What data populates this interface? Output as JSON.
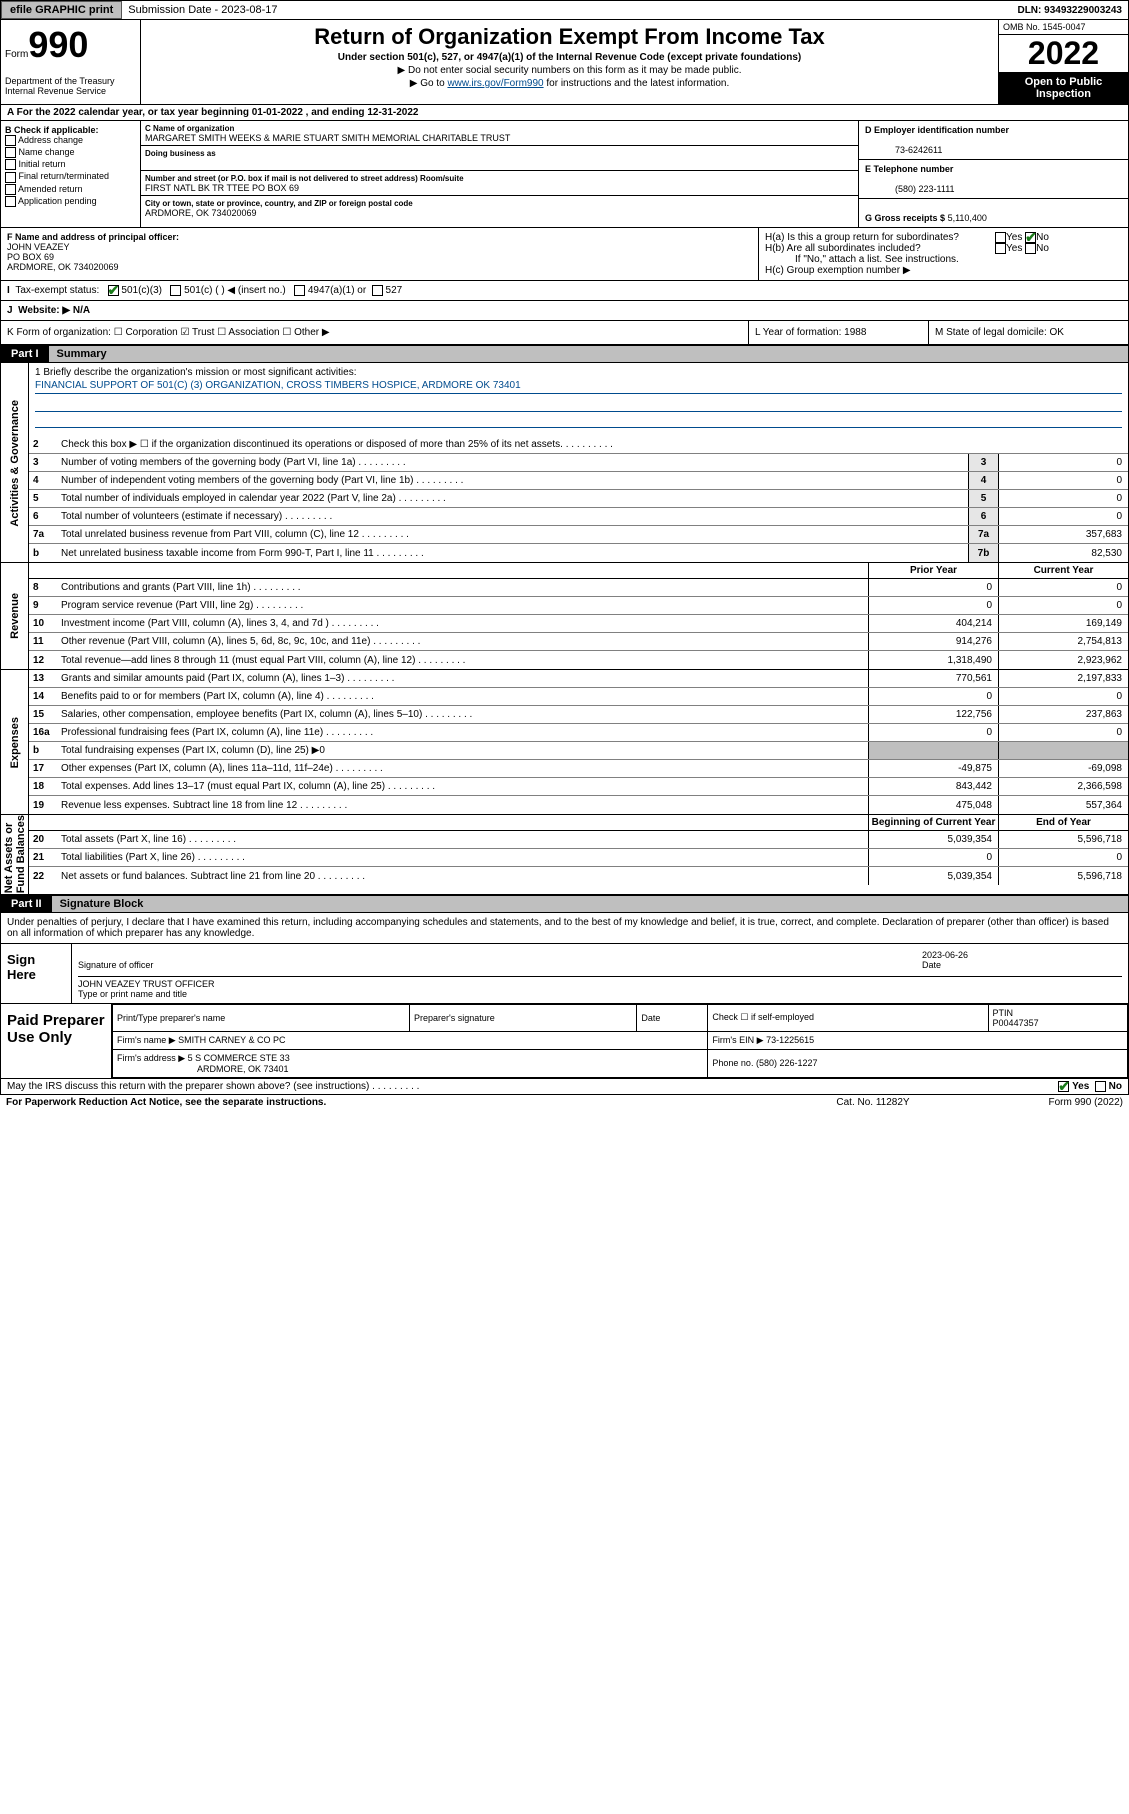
{
  "top": {
    "efile": "efile GRAPHIC print",
    "sub_lbl": "Submission Date - 2023-08-17",
    "dln": "DLN: 93493229003243"
  },
  "hdr": {
    "form": "Form",
    "num": "990",
    "dept": "Department of the Treasury Internal Revenue Service",
    "title": "Return of Organization Exempt From Income Tax",
    "sub": "Under section 501(c), 527, or 4947(a)(1) of the Internal Revenue Code (except private foundations)",
    "note1": "▶ Do not enter social security numbers on this form as it may be made public.",
    "note2": "▶ Go to www.irs.gov/Form990 for instructions and the latest information.",
    "omb": "OMB No. 1545-0047",
    "year": "2022",
    "open": "Open to Public Inspection"
  },
  "rowA": "A For the 2022 calendar year, or tax year beginning 01-01-2022    , and ending 12-31-2022",
  "colB": {
    "title": "B Check if applicable:",
    "items": [
      "Address change",
      "Name change",
      "Initial return",
      "Final return/terminated",
      "Amended return",
      "Application pending"
    ]
  },
  "colC": {
    "name_lbl": "C Name of organization",
    "name": "MARGARET SMITH WEEKS & MARIE STUART SMITH MEMORIAL CHARITABLE TRUST",
    "dba_lbl": "Doing business as",
    "addr_lbl": "Number and street (or P.O. box if mail is not delivered to street address)      Room/suite",
    "addr": "FIRST NATL BK TR TTEE PO BOX 69",
    "city_lbl": "City or town, state or province, country, and ZIP or foreign postal code",
    "city": "ARDMORE, OK  734020069"
  },
  "colDE": {
    "ein_lbl": "D Employer identification number",
    "ein": "73-6242611",
    "tel_lbl": "E Telephone number",
    "tel": "(580) 223-1111",
    "gross_lbl": "G Gross receipts $",
    "gross": "5,110,400"
  },
  "rowF": {
    "lbl": "F  Name and address of principal officer:",
    "name": "JOHN VEAZEY",
    "addr1": "PO BOX 69",
    "addr2": "ARDMORE, OK  734020069"
  },
  "rowH": {
    "a": "H(a)  Is this a group return for subordinates?",
    "a_ans": "No",
    "b": "H(b)  Are all subordinates included?",
    "b_note": "If \"No,\" attach a list. See instructions.",
    "c": "H(c)  Group exemption number ▶"
  },
  "rowI": "Tax-exempt status:",
  "rowI_opts": [
    "501(c)(3)",
    "501(c) (   ) ◀ (insert no.)",
    "4947(a)(1) or",
    "527"
  ],
  "rowJ": "Website: ▶  N/A",
  "rowK": {
    "l": "K Form of organization:  ☐ Corporation  ☑ Trust  ☐ Association  ☐ Other ▶",
    "m": "L Year of formation: 1988",
    "n": "M State of legal domicile: OK"
  },
  "part1": {
    "num": "Part I",
    "title": "Summary"
  },
  "mission": {
    "q": "1   Briefly describe the organization's mission or most significant activities:",
    "a": "FINANCIAL SUPPORT OF 501(C) (3) ORGANIZATION, CROSS TIMBERS HOSPICE, ARDMORE OK 73401"
  },
  "gov": [
    {
      "n": "2",
      "t": "Check this box ▶ ☐  if the organization discontinued its operations or disposed of more than 25% of its net assets."
    },
    {
      "n": "3",
      "t": "Number of voting members of the governing body (Part VI, line 1a)",
      "b": "3",
      "v": "0"
    },
    {
      "n": "4",
      "t": "Number of independent voting members of the governing body (Part VI, line 1b)",
      "b": "4",
      "v": "0"
    },
    {
      "n": "5",
      "t": "Total number of individuals employed in calendar year 2022 (Part V, line 2a)",
      "b": "5",
      "v": "0"
    },
    {
      "n": "6",
      "t": "Total number of volunteers (estimate if necessary)",
      "b": "6",
      "v": "0"
    },
    {
      "n": "7a",
      "t": "Total unrelated business revenue from Part VIII, column (C), line 12",
      "b": "7a",
      "v": "357,683"
    },
    {
      "n": "b",
      "t": "Net unrelated business taxable income from Form 990-T, Part I, line 11",
      "b": "7b",
      "v": "82,530"
    }
  ],
  "colhdr": {
    "c1": "Prior Year",
    "c2": "Current Year"
  },
  "rev": [
    {
      "n": "8",
      "t": "Contributions and grants (Part VIII, line 1h)",
      "p": "0",
      "c": "0"
    },
    {
      "n": "9",
      "t": "Program service revenue (Part VIII, line 2g)",
      "p": "0",
      "c": "0"
    },
    {
      "n": "10",
      "t": "Investment income (Part VIII, column (A), lines 3, 4, and 7d )",
      "p": "404,214",
      "c": "169,149"
    },
    {
      "n": "11",
      "t": "Other revenue (Part VIII, column (A), lines 5, 6d, 8c, 9c, 10c, and 11e)",
      "p": "914,276",
      "c": "2,754,813"
    },
    {
      "n": "12",
      "t": "Total revenue—add lines 8 through 11 (must equal Part VIII, column (A), line 12)",
      "p": "1,318,490",
      "c": "2,923,962"
    }
  ],
  "exp": [
    {
      "n": "13",
      "t": "Grants and similar amounts paid (Part IX, column (A), lines 1–3)",
      "p": "770,561",
      "c": "2,197,833"
    },
    {
      "n": "14",
      "t": "Benefits paid to or for members (Part IX, column (A), line 4)",
      "p": "0",
      "c": "0"
    },
    {
      "n": "15",
      "t": "Salaries, other compensation, employee benefits (Part IX, column (A), lines 5–10)",
      "p": "122,756",
      "c": "237,863"
    },
    {
      "n": "16a",
      "t": "Professional fundraising fees (Part IX, column (A), line 11e)",
      "p": "0",
      "c": "0"
    },
    {
      "n": "b",
      "t": "Total fundraising expenses (Part IX, column (D), line 25) ▶0",
      "nocol": true
    },
    {
      "n": "17",
      "t": "Other expenses (Part IX, column (A), lines 11a–11d, 11f–24e)",
      "p": "-49,875",
      "c": "-69,098"
    },
    {
      "n": "18",
      "t": "Total expenses. Add lines 13–17 (must equal Part IX, column (A), line 25)",
      "p": "843,442",
      "c": "2,366,598"
    },
    {
      "n": "19",
      "t": "Revenue less expenses. Subtract line 18 from line 12",
      "p": "475,048",
      "c": "557,364"
    }
  ],
  "colhdr2": {
    "c1": "Beginning of Current Year",
    "c2": "End of Year"
  },
  "net": [
    {
      "n": "20",
      "t": "Total assets (Part X, line 16)",
      "p": "5,039,354",
      "c": "5,596,718"
    },
    {
      "n": "21",
      "t": "Total liabilities (Part X, line 26)",
      "p": "0",
      "c": "0"
    },
    {
      "n": "22",
      "t": "Net assets or fund balances. Subtract line 21 from line 20",
      "p": "5,039,354",
      "c": "5,596,718"
    }
  ],
  "part2": {
    "num": "Part II",
    "title": "Signature Block"
  },
  "sig_decl": "Under penalties of perjury, I declare that I have examined this return, including accompanying schedules and statements, and to the best of my knowledge and belief, it is true, correct, and complete. Declaration of preparer (other than officer) is based on all information of which preparer has any knowledge.",
  "sign": {
    "here": "Sign Here",
    "sig_lbl": "Signature of officer",
    "date_lbl": "Date",
    "date": "2023-06-26",
    "name": "JOHN VEAZEY TRUST OFFICER",
    "name_lbl": "Type or print name and title"
  },
  "prep": {
    "title": "Paid Preparer Use Only",
    "h": [
      "Print/Type preparer's name",
      "Preparer's signature",
      "Date",
      "Check ☐ if self-employed",
      "PTIN"
    ],
    "ptin": "P00447357",
    "firm_lbl": "Firm's name  ▶",
    "firm": "SMITH CARNEY & CO PC",
    "ein_lbl": "Firm's EIN ▶",
    "ein": "73-1225615",
    "addr_lbl": "Firm's address ▶",
    "addr1": "5 S COMMERCE STE 33",
    "addr2": "ARDMORE, OK  73401",
    "ph_lbl": "Phone no.",
    "ph": "(580) 226-1227"
  },
  "foot": {
    "q": "May the IRS discuss this return with the preparer shown above? (see instructions)",
    "ans": "Yes",
    "pra": "For Paperwork Reduction Act Notice, see the separate instructions.",
    "cat": "Cat. No. 11282Y",
    "form": "Form 990 (2022)"
  },
  "colors": {
    "link": "#004b8d",
    "grey": "#bfbfbf"
  }
}
